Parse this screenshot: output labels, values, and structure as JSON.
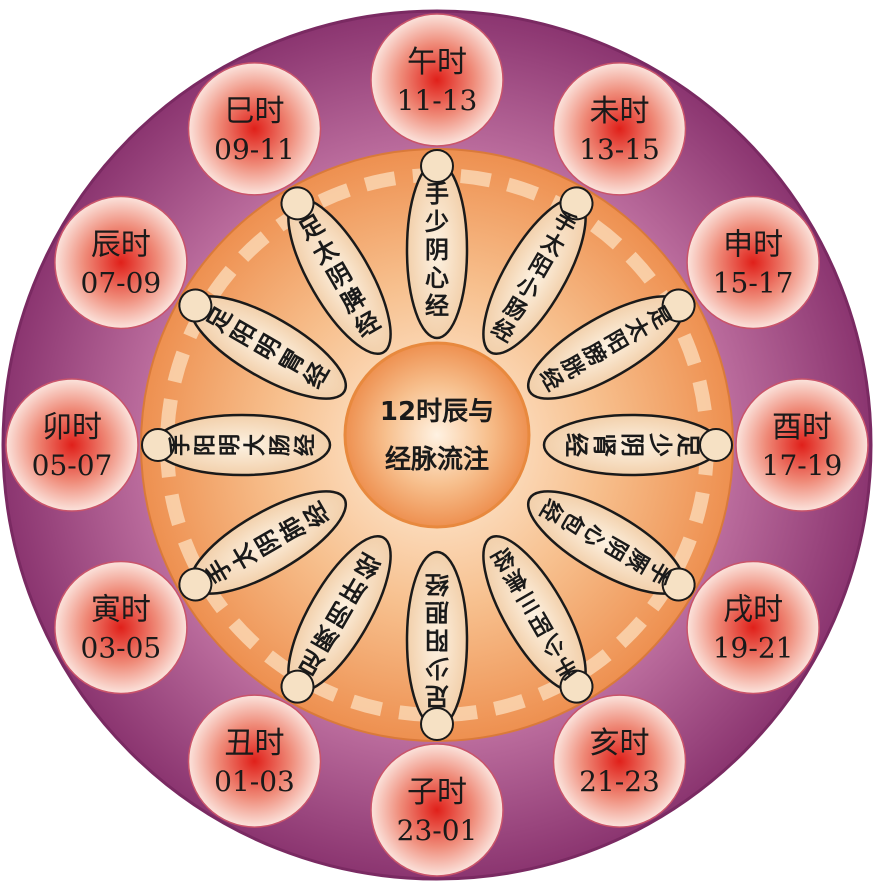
{
  "center": {
    "line1": "12时辰与",
    "line2": "经脉流注"
  },
  "hours": [
    {
      "name": "午时",
      "range": "11-13"
    },
    {
      "name": "未时",
      "range": "13-15"
    },
    {
      "name": "申时",
      "range": "15-17"
    },
    {
      "name": "酉时",
      "range": "17-19"
    },
    {
      "name": "戌时",
      "range": "19-21"
    },
    {
      "name": "亥时",
      "range": "21-23"
    },
    {
      "name": "子时",
      "range": "23-01"
    },
    {
      "name": "丑时",
      "range": "01-03"
    },
    {
      "name": "寅时",
      "range": "03-05"
    },
    {
      "name": "卯时",
      "range": "05-07"
    },
    {
      "name": "辰时",
      "range": "07-09"
    },
    {
      "name": "巳时",
      "range": "09-11"
    }
  ],
  "meridians": [
    "手少阴心经",
    "手太阳小肠经",
    "足太阳膀胱经",
    "足少阴肾经",
    "手厥阴心包经",
    "手少阳三焦经",
    "足少阳胆经",
    "足厥阴肝经",
    "手太阴肺经",
    "手阳明大肠经",
    "足阳明胃经",
    "足太阴脾经"
  ],
  "colors": {
    "outer_ring": "#9a3f7e",
    "inner_disc": "#f3a86a",
    "hour_ball": "#e5483a",
    "capsule": "#f6e1c4",
    "outline": "#1a1a1a"
  }
}
